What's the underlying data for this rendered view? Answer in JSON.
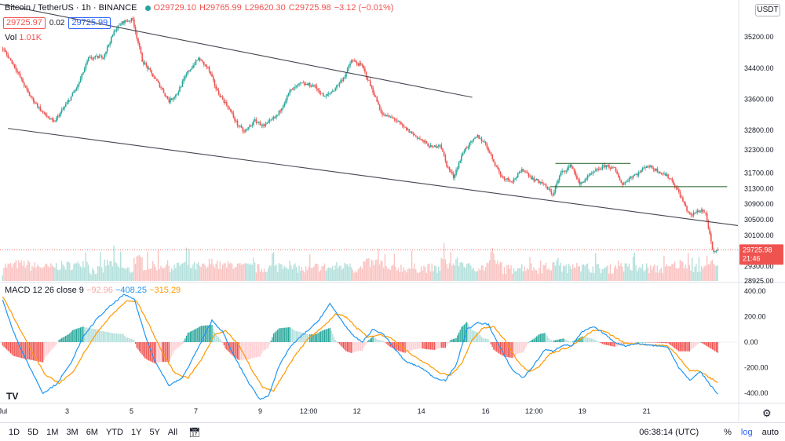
{
  "header": {
    "symbol": "Bitcoin / TetherUS · 1h · BINANCE",
    "o": "O29729.10",
    "h": "H29765.99",
    "l": "L29620.30",
    "c": "C29725.98",
    "chg": "−3.12 (−0.01%)"
  },
  "order": {
    "sell": "29725.97",
    "spread": "0.02",
    "buy": "29725.99"
  },
  "volume_label": {
    "label": "Vol",
    "value": "1.01K"
  },
  "macd_label": {
    "label": "MACD",
    "params": "12 26 close 9",
    "hist": "−92.96",
    "macd": "−408.25",
    "signal": "−315.29"
  },
  "currency": "USDT",
  "logo": "TV",
  "last_price": {
    "value": "29725.98",
    "countdown": "21:46"
  },
  "bottombar": {
    "intervals": [
      "1D",
      "5D",
      "1M",
      "3M",
      "6M",
      "YTD",
      "1Y",
      "5Y",
      "All"
    ],
    "calendar_icon": "calendar-icon",
    "clock": "06:38:14 (UTC)",
    "percent": "%",
    "log": "log",
    "auto": "auto"
  },
  "colors": {
    "up": "#26a69a",
    "down": "#ef5350",
    "macd": "#2196f3",
    "signal": "#ff9800",
    "trend": "#131722"
  },
  "chart_data": [
    {
      "type": "candlestick",
      "title": "Bitcoin / TetherUS · 1h · BINANCE",
      "x_ticks": [
        "Jul",
        "3",
        "5",
        "7",
        "9",
        "12:00",
        "12",
        "14",
        "16",
        "12:00",
        "19",
        "21"
      ],
      "x_tick_hours": [
        0,
        48,
        96,
        144,
        192,
        228,
        264,
        312,
        360,
        396,
        432,
        480
      ],
      "x_range_hours": [
        -2,
        548
      ],
      "y_ticks": [
        35200,
        34400,
        33600,
        32800,
        32300,
        31700,
        31300,
        30900,
        30500,
        30100,
        29300,
        28925
      ],
      "ylim": [
        28925,
        35750
      ],
      "keypoints": [
        [
          0,
          34900
        ],
        [
          8,
          34500
        ],
        [
          20,
          33700
        ],
        [
          30,
          33250
        ],
        [
          38,
          33000
        ],
        [
          48,
          33500
        ],
        [
          56,
          33950
        ],
        [
          64,
          34650
        ],
        [
          75,
          34700
        ],
        [
          84,
          35400
        ],
        [
          90,
          35600
        ],
        [
          97,
          35650
        ],
        [
          104,
          34600
        ],
        [
          112,
          34200
        ],
        [
          118,
          33900
        ],
        [
          124,
          33550
        ],
        [
          130,
          33750
        ],
        [
          138,
          34300
        ],
        [
          146,
          34650
        ],
        [
          153,
          34400
        ],
        [
          160,
          33800
        ],
        [
          168,
          33400
        ],
        [
          175,
          32950
        ],
        [
          180,
          32750
        ],
        [
          188,
          33050
        ],
        [
          195,
          32900
        ],
        [
          205,
          33200
        ],
        [
          214,
          33800
        ],
        [
          222,
          34000
        ],
        [
          232,
          33950
        ],
        [
          240,
          33650
        ],
        [
          247,
          33850
        ],
        [
          255,
          34200
        ],
        [
          260,
          34600
        ],
        [
          268,
          34450
        ],
        [
          276,
          33800
        ],
        [
          283,
          33200
        ],
        [
          292,
          33100
        ],
        [
          298,
          32900
        ],
        [
          310,
          32600
        ],
        [
          320,
          32350
        ],
        [
          326,
          32450
        ],
        [
          331,
          31900
        ],
        [
          336,
          31600
        ],
        [
          344,
          32300
        ],
        [
          354,
          32650
        ],
        [
          360,
          32450
        ],
        [
          366,
          32000
        ],
        [
          372,
          31600
        ],
        [
          380,
          31500
        ],
        [
          388,
          31800
        ],
        [
          395,
          31550
        ],
        [
          402,
          31450
        ],
        [
          410,
          31150
        ],
        [
          416,
          31700
        ],
        [
          424,
          31900
        ],
        [
          430,
          31400
        ],
        [
          436,
          31600
        ],
        [
          444,
          31800
        ],
        [
          450,
          31900
        ],
        [
          456,
          31800
        ],
        [
          462,
          31400
        ],
        [
          468,
          31600
        ],
        [
          474,
          31700
        ],
        [
          480,
          31900
        ],
        [
          486,
          31800
        ],
        [
          492,
          31700
        ],
        [
          498,
          31550
        ],
        [
          504,
          31200
        ],
        [
          510,
          30750
        ],
        [
          513,
          30600
        ],
        [
          517,
          30700
        ],
        [
          521,
          30750
        ],
        [
          524,
          30650
        ],
        [
          526,
          30300
        ],
        [
          529,
          29700
        ],
        [
          531,
          29650
        ],
        [
          533,
          29726
        ]
      ],
      "last_price": 29725.98,
      "trend_lines": [
        {
          "name": "channel-top",
          "points": [
            [
              -2,
              36050
            ],
            [
              350,
              33650
            ]
          ]
        },
        {
          "name": "channel-bottom",
          "points": [
            [
              4,
              32850
            ],
            [
              548,
              30350
            ]
          ]
        },
        {
          "name": "range-high",
          "points": [
            [
              412,
              31950
            ],
            [
              468,
              31950
            ]
          ]
        },
        {
          "name": "range-low",
          "points": [
            [
              408,
              31350
            ],
            [
              540,
              31350
            ]
          ]
        }
      ]
    },
    {
      "type": "bar",
      "title": "Volume",
      "value": "1.01K"
    },
    {
      "type": "line",
      "title": "MACD 12 26 close 9",
      "y_ticks": [
        400,
        200,
        0,
        -200,
        -400
      ],
      "ylim": [
        -455,
        455
      ],
      "series": [
        {
          "name": "MACD",
          "value": -408.25,
          "keypoints": [
            [
              0,
              330
            ],
            [
              8,
              80
            ],
            [
              18,
              -150
            ],
            [
              30,
              -400
            ],
            [
              40,
              -330
            ],
            [
              50,
              -180
            ],
            [
              60,
              40
            ],
            [
              70,
              180
            ],
            [
              80,
              280
            ],
            [
              90,
              370
            ],
            [
              98,
              340
            ],
            [
              106,
              60
            ],
            [
              114,
              -160
            ],
            [
              124,
              -340
            ],
            [
              134,
              -280
            ],
            [
              146,
              -40
            ],
            [
              156,
              170
            ],
            [
              164,
              80
            ],
            [
              172,
              -100
            ],
            [
              184,
              -330
            ],
            [
              192,
              -450
            ],
            [
              198,
              -420
            ],
            [
              206,
              -190
            ],
            [
              214,
              -40
            ],
            [
              224,
              60
            ],
            [
              234,
              150
            ],
            [
              244,
              300
            ],
            [
              252,
              180
            ],
            [
              260,
              60
            ],
            [
              268,
              0
            ],
            [
              276,
              100
            ],
            [
              284,
              60
            ],
            [
              292,
              -50
            ],
            [
              300,
              -150
            ],
            [
              312,
              -200
            ],
            [
              322,
              -280
            ],
            [
              330,
              -300
            ],
            [
              338,
              -180
            ],
            [
              346,
              100
            ],
            [
              354,
              150
            ],
            [
              362,
              140
            ],
            [
              370,
              -30
            ],
            [
              380,
              -220
            ],
            [
              388,
              -280
            ],
            [
              396,
              -180
            ],
            [
              404,
              -60
            ],
            [
              410,
              -70
            ],
            [
              418,
              -20
            ],
            [
              424,
              -30
            ],
            [
              432,
              80
            ],
            [
              440,
              120
            ],
            [
              448,
              70
            ],
            [
              456,
              0
            ],
            [
              464,
              -30
            ],
            [
              472,
              -10
            ],
            [
              480,
              -20
            ],
            [
              488,
              -30
            ],
            [
              496,
              -40
            ],
            [
              504,
              -200
            ],
            [
              512,
              -300
            ],
            [
              520,
              -230
            ],
            [
              527,
              -330
            ],
            [
              533,
              -408
            ]
          ]
        },
        {
          "name": "Signal",
          "value": -315.29,
          "keypoints": [
            [
              0,
              360
            ],
            [
              10,
              160
            ],
            [
              20,
              -40
            ],
            [
              32,
              -260
            ],
            [
              42,
              -320
            ],
            [
              52,
              -240
            ],
            [
              62,
              -60
            ],
            [
              72,
              100
            ],
            [
              82,
              220
            ],
            [
              92,
              320
            ],
            [
              100,
              320
            ],
            [
              108,
              160
            ],
            [
              118,
              -60
            ],
            [
              128,
              -240
            ],
            [
              138,
              -280
            ],
            [
              148,
              -140
            ],
            [
              158,
              60
            ],
            [
              166,
              90
            ],
            [
              176,
              -20
            ],
            [
              186,
              -220
            ],
            [
              194,
              -360
            ],
            [
              202,
              -380
            ],
            [
              210,
              -240
            ],
            [
              218,
              -100
            ],
            [
              228,
              30
            ],
            [
              238,
              110
            ],
            [
              248,
              220
            ],
            [
              256,
              200
            ],
            [
              264,
              110
            ],
            [
              272,
              40
            ],
            [
              280,
              60
            ],
            [
              288,
              40
            ],
            [
              296,
              -20
            ],
            [
              306,
              -110
            ],
            [
              316,
              -170
            ],
            [
              326,
              -240
            ],
            [
              334,
              -260
            ],
            [
              342,
              -170
            ],
            [
              350,
              20
            ],
            [
              358,
              110
            ],
            [
              366,
              120
            ],
            [
              374,
              20
            ],
            [
              384,
              -150
            ],
            [
              392,
              -230
            ],
            [
              400,
              -190
            ],
            [
              408,
              -90
            ],
            [
              416,
              -60
            ],
            [
              424,
              -30
            ],
            [
              432,
              30
            ],
            [
              440,
              90
            ],
            [
              448,
              90
            ],
            [
              456,
              40
            ],
            [
              464,
              -10
            ],
            [
              472,
              -10
            ],
            [
              480,
              -20
            ],
            [
              488,
              -25
            ],
            [
              496,
              -30
            ],
            [
              504,
              -120
            ],
            [
              512,
              -220
            ],
            [
              520,
              -230
            ],
            [
              527,
              -280
            ],
            [
              533,
              -315
            ]
          ]
        }
      ],
      "histogram": "MACD minus Signal"
    }
  ]
}
